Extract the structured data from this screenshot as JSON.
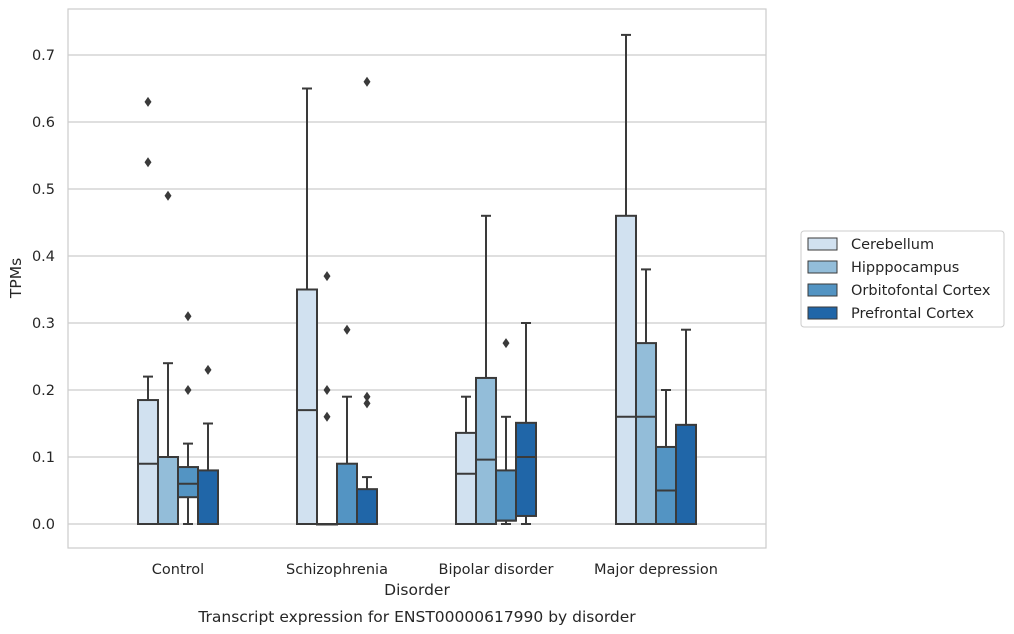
{
  "chart_data": {
    "type": "box",
    "caption": "Transcript expression for ENST00000617990 by disorder",
    "xlabel": "Disorder",
    "ylabel": "TPMs",
    "ylim": [
      -0.035,
      0.77
    ],
    "yticks": [
      "0.0",
      "0.1",
      "0.2",
      "0.3",
      "0.4",
      "0.5",
      "0.6",
      "0.7"
    ],
    "ytick_values": [
      0,
      0.1,
      0.2,
      0.3,
      0.4,
      0.5,
      0.6,
      0.7
    ],
    "grid": "horizontal",
    "legend_position": "right",
    "categories": [
      "Control",
      "Schizophrenia",
      "Bipolar disorder",
      "Major depression"
    ],
    "series": [
      {
        "name": "Cerebellum",
        "color": "#d1e1f0",
        "boxes": [
          {
            "whisker_low": 0,
            "q1": 0,
            "median": 0.09,
            "q3": 0.185,
            "whisker_high": 0.22,
            "outliers": [
              0.54,
              0.63
            ]
          },
          {
            "whisker_low": 0,
            "q1": 0,
            "median": 0.17,
            "q3": 0.35,
            "whisker_high": 0.65,
            "outliers": []
          },
          {
            "whisker_low": 0,
            "q1": 0,
            "median": 0.075,
            "q3": 0.136,
            "whisker_high": 0.19,
            "outliers": []
          },
          {
            "whisker_low": 0,
            "q1": 0,
            "median": 0.16,
            "q3": 0.46,
            "whisker_high": 0.73,
            "outliers": []
          }
        ]
      },
      {
        "name": "Hipppocampus",
        "color": "#93bdd9",
        "boxes": [
          {
            "whisker_low": 0,
            "q1": 0,
            "median": 0.0,
            "q3": 0.1,
            "whisker_high": 0.24,
            "outliers": [
              0.49
            ]
          },
          {
            "whisker_low": 0,
            "q1": 0,
            "median": 0,
            "q3": 0,
            "whisker_high": 0,
            "outliers": [
              0.16,
              0.2,
              0.37
            ]
          },
          {
            "whisker_low": 0,
            "q1": 0,
            "median": 0.096,
            "q3": 0.218,
            "whisker_high": 0.46,
            "outliers": []
          },
          {
            "whisker_low": 0,
            "q1": 0,
            "median": 0.16,
            "q3": 0.27,
            "whisker_high": 0.38,
            "outliers": []
          }
        ]
      },
      {
        "name": "Orbitofontal Cortex",
        "color": "#5394c3",
        "boxes": [
          {
            "whisker_low": 0,
            "q1": 0.04,
            "median": 0.06,
            "q3": 0.085,
            "whisker_high": 0.12,
            "outliers": [
              0.2,
              0.31
            ]
          },
          {
            "whisker_low": 0,
            "q1": 0,
            "median": 0,
            "q3": 0.09,
            "whisker_high": 0.19,
            "outliers": [
              0.29
            ]
          },
          {
            "whisker_low": 0,
            "q1": 0.005,
            "median": 0.005,
            "q3": 0.08,
            "whisker_high": 0.16,
            "outliers": [
              0.27
            ]
          },
          {
            "whisker_low": 0,
            "q1": 0,
            "median": 0.05,
            "q3": 0.115,
            "whisker_high": 0.2,
            "outliers": []
          }
        ]
      },
      {
        "name": "Prefrontal Cortex",
        "color": "#2066a8",
        "boxes": [
          {
            "whisker_low": 0,
            "q1": 0,
            "median": 0,
            "q3": 0.08,
            "whisker_high": 0.15,
            "outliers": [
              0.23
            ]
          },
          {
            "whisker_low": 0,
            "q1": 0,
            "median": 0,
            "q3": 0.052,
            "whisker_high": 0.07,
            "outliers": [
              0.18,
              0.19,
              0.66
            ]
          },
          {
            "whisker_low": 0,
            "q1": 0.012,
            "median": 0.1,
            "q3": 0.151,
            "whisker_high": 0.3,
            "outliers": []
          },
          {
            "whisker_low": 0,
            "q1": 0,
            "median": 0,
            "q3": 0.148,
            "whisker_high": 0.29,
            "outliers": []
          }
        ]
      }
    ]
  }
}
